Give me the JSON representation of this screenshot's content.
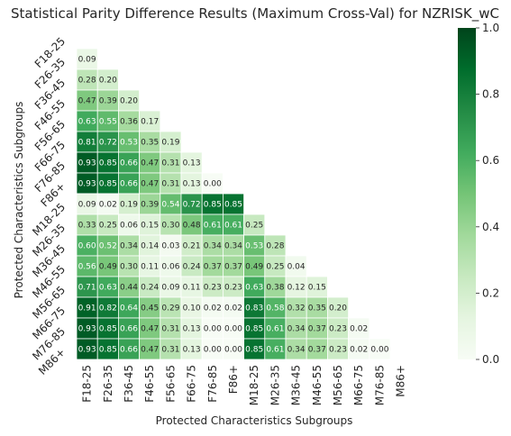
{
  "chart_data": {
    "type": "heatmap",
    "title": "Statistical Parity Difference Results (Maximum Cross-Val) for NZRISK_wC",
    "xlabel": "Protected Characteristics Subgroups",
    "ylabel": "Protected Characteristics Subgroups",
    "categories": [
      "F18-25",
      "F26-35",
      "F36-45",
      "F46-55",
      "F56-65",
      "F66-75",
      "F76-85",
      "F86+",
      "M18-25",
      "M26-35",
      "M36-45",
      "M46-55",
      "M56-65",
      "M66-75",
      "M76-85",
      "M86+"
    ],
    "mask": "upper-triangle-including-diagonal",
    "values": [
      [],
      [
        "0.09"
      ],
      [
        "0.28",
        "0.20"
      ],
      [
        "0.47",
        "0.39",
        "0.20"
      ],
      [
        "0.63",
        "0.55",
        "0.36",
        "0.17"
      ],
      [
        "0.81",
        "0.72",
        "0.53",
        "0.35",
        "0.19"
      ],
      [
        "0.93",
        "0.85",
        "0.66",
        "0.47",
        "0.31",
        "0.13"
      ],
      [
        "0.93",
        "0.85",
        "0.66",
        "0.47",
        "0.31",
        "0.13",
        "0.00"
      ],
      [
        "0.09",
        "0.02",
        "0.19",
        "0.39",
        "0.54",
        "0.72",
        "0.85",
        "0.85"
      ],
      [
        "0.33",
        "0.25",
        "0.06",
        "0.15",
        "0.30",
        "0.48",
        "0.61",
        "0.61",
        "0.25"
      ],
      [
        "0.60",
        "0.52",
        "0.34",
        "0.14",
        "0.03",
        "0.21",
        "0.34",
        "0.34",
        "0.53",
        "0.28"
      ],
      [
        "0.56",
        "0.49",
        "0.30",
        "0.11",
        "0.06",
        "0.24",
        "0.37",
        "0.37",
        "0.49",
        "0.25",
        "0.04"
      ],
      [
        "0.71",
        "0.63",
        "0.44",
        "0.24",
        "0.09",
        "0.11",
        "0.23",
        "0.23",
        "0.63",
        "0.38",
        "0.12",
        "0.15"
      ],
      [
        "0.91",
        "0.82",
        "0.64",
        "0.45",
        "0.29",
        "0.10",
        "0.02",
        "0.02",
        "0.83",
        "0.58",
        "0.32",
        "0.35",
        "0.20"
      ],
      [
        "0.93",
        "0.85",
        "0.66",
        "0.47",
        "0.31",
        "0.13",
        "0.00",
        "0.00",
        "0.85",
        "0.61",
        "0.34",
        "0.37",
        "0.23",
        "0.02"
      ],
      [
        "0.93",
        "0.85",
        "0.66",
        "0.47",
        "0.31",
        "0.13",
        "0.00",
        "0.00",
        "0.85",
        "0.61",
        "0.34",
        "0.37",
        "0.23",
        "0.02",
        "0.00"
      ]
    ],
    "colorbar": {
      "range": [
        0,
        1
      ],
      "ticks": [
        "0.0",
        "0.2",
        "0.4",
        "0.6",
        "0.8",
        "1.0"
      ],
      "colormap": "Greens"
    }
  }
}
